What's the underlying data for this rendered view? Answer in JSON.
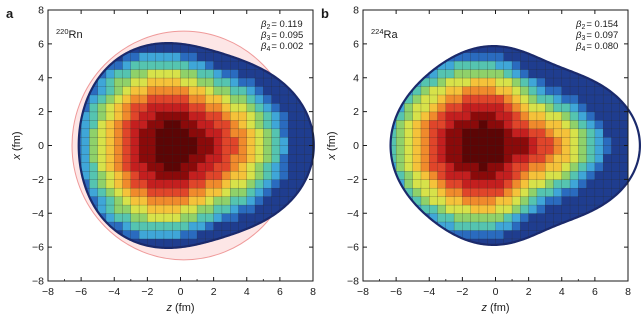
{
  "panels": [
    {
      "letter": "a",
      "nucleus": {
        "mass": "220",
        "symbol": "Rn"
      },
      "betas": [
        {
          "symbol": "β",
          "sub": "2",
          "value": "= 0.119"
        },
        {
          "symbol": "β",
          "sub": "3",
          "value": "= 0.095"
        },
        {
          "symbol": "β",
          "sub": "4",
          "value": "= 0.002"
        }
      ],
      "xlabel": {
        "var": "z",
        "unit": " (fm)"
      },
      "ylabel": {
        "var": "x",
        "unit": " (fm)"
      },
      "xticks": [
        "−8",
        "−6",
        "−4",
        "−2",
        "0",
        "2",
        "4",
        "6",
        "8"
      ],
      "yticks": [
        "8",
        "6",
        "4",
        "2",
        "0",
        "−2",
        "−4",
        "−6",
        "−8"
      ],
      "shape": {
        "z_center": 0.35,
        "r0_fm": 6.33,
        "beta2": 0.119,
        "beta3": 0.095,
        "beta4": 0.002,
        "max_density_at_z": -0.4
      },
      "reference_outline": {
        "shown": true,
        "color": "#ef9a9a"
      }
    },
    {
      "letter": "b",
      "nucleus": {
        "mass": "224",
        "symbol": "Ra"
      },
      "betas": [
        {
          "symbol": "β",
          "sub": "2",
          "value": "= 0.154"
        },
        {
          "symbol": "β",
          "sub": "3",
          "value": "= 0.097"
        },
        {
          "symbol": "β",
          "sub": "4",
          "value": "= 0.080"
        }
      ],
      "xlabel": {
        "var": "z",
        "unit": " (fm)"
      },
      "ylabel": {
        "var": "x",
        "unit": " (fm)"
      },
      "xticks": [
        "−8",
        "−6",
        "−4",
        "−2",
        "0",
        "2",
        "4",
        "6",
        "8"
      ],
      "yticks": [
        "8",
        "6",
        "4",
        "2",
        "0",
        "−2",
        "−4",
        "−6",
        "−8"
      ],
      "shape": {
        "z_center": 0.6,
        "r0_fm": 6.1,
        "beta2": 0.154,
        "beta3": 0.097,
        "beta4": 0.08,
        "max_density_at_z": -0.7
      },
      "reference_outline": {
        "shown": false
      }
    }
  ],
  "axis_range": {
    "z": [
      -8,
      8
    ],
    "x": [
      -8,
      8
    ]
  },
  "colors": {
    "surface_outline": "#1b2a6b",
    "grid_line": "#333333",
    "colormap": [
      "#1f3d8f",
      "#2a6bbf",
      "#3fa6d8",
      "#55c4b0",
      "#8fd16a",
      "#d7e24a",
      "#f5c23a",
      "#f08a2c",
      "#e0452a",
      "#c41f1f",
      "#8b0a0a",
      "#5c0505"
    ]
  }
}
